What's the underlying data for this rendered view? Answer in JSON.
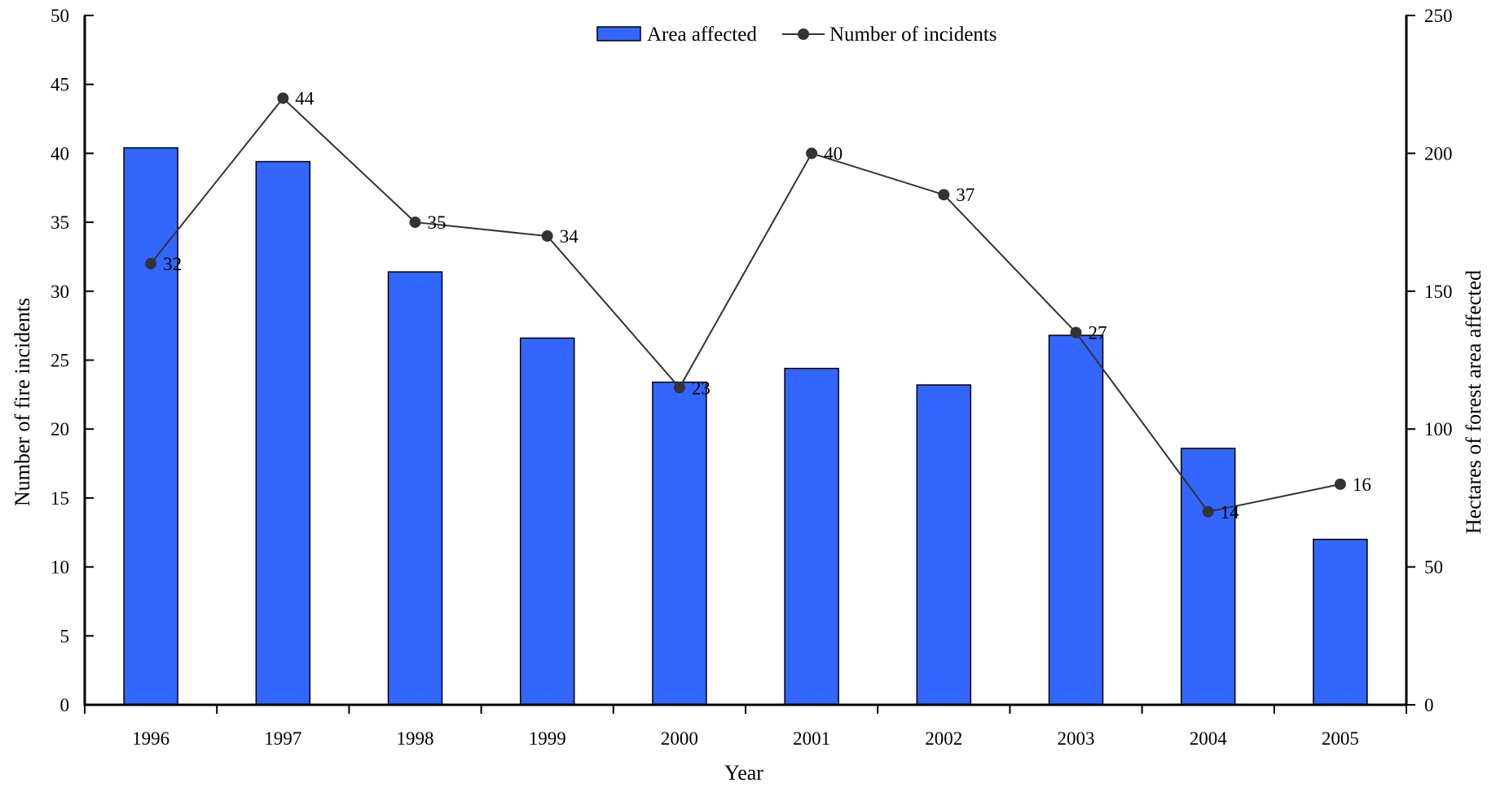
{
  "chart_data": {
    "type": "bar",
    "categories": [
      "1996",
      "1997",
      "1998",
      "1999",
      "2000",
      "2001",
      "2002",
      "2003",
      "2004",
      "2005"
    ],
    "series": [
      {
        "name": "Area affected",
        "type": "bar",
        "axis": "right",
        "values": [
          202,
          197,
          157,
          133,
          117,
          122,
          116,
          134,
          93,
          60
        ]
      },
      {
        "name": "Number of incidents",
        "type": "line",
        "axis": "left",
        "values": [
          32,
          44,
          35,
          34,
          23,
          40,
          37,
          27,
          14,
          16
        ],
        "data_labels": [
          "32",
          "44",
          "35",
          "34",
          "23",
          "40",
          "37",
          "27",
          "14",
          "16"
        ]
      }
    ],
    "xlabel": "Year",
    "ylabel": "Number of fire incidents",
    "y2label": "Hectares of forest area affected",
    "ylim": [
      0,
      50
    ],
    "y2lim": [
      0,
      250
    ],
    "yticks": [
      "0",
      "5",
      "10",
      "15",
      "20",
      "25",
      "30",
      "35",
      "40",
      "45",
      "50"
    ],
    "y2ticks": [
      "0",
      "50",
      "100",
      "150",
      "200",
      "250"
    ],
    "grid": false,
    "legend": "top-center",
    "colors": {
      "bar_fill": "#3366FF",
      "bar_stroke": "#000000",
      "line": "#333333",
      "marker": "#333333"
    }
  }
}
